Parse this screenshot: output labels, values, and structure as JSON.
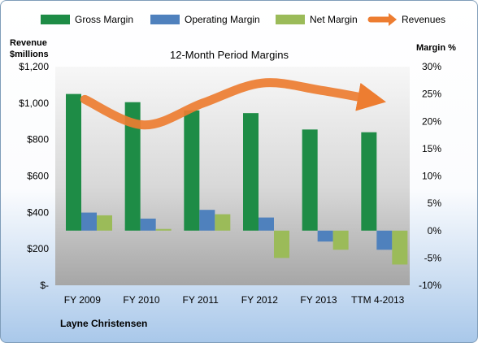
{
  "chart_data": {
    "type": "bar",
    "title": "12-Month Period Margins",
    "ylabel_left_line1": "Revenue",
    "ylabel_left_line2": "$millions",
    "ylabel_right": "Margin %",
    "author": "Layne Christensen",
    "categories": [
      "FY 2009",
      "FY 2010",
      "FY 2011",
      "FY 2012",
      "FY 2013",
      "TTM 4-2013"
    ],
    "left_axis": {
      "min": 0,
      "max": 1200,
      "step": 200,
      "ticks": [
        "$-",
        "$200",
        "$400",
        "$600",
        "$800",
        "$1,000",
        "$1,200"
      ]
    },
    "right_axis": {
      "min": -10,
      "max": 30,
      "step": 5,
      "ticks": [
        "-10%",
        "-5%",
        "0%",
        "5%",
        "10%",
        "15%",
        "20%",
        "25%",
        "30%"
      ]
    },
    "series": [
      {
        "name": "Gross Margin",
        "axis": "right",
        "color": "#1e8c46",
        "values": [
          25.0,
          23.5,
          22.0,
          21.5,
          18.5,
          18.0
        ]
      },
      {
        "name": "Operating Margin",
        "axis": "right",
        "color": "#4f81bd",
        "values": [
          3.3,
          2.2,
          3.8,
          2.4,
          -2.0,
          -3.5
        ]
      },
      {
        "name": "Net Margin",
        "axis": "right",
        "color": "#9bbb59",
        "values": [
          2.8,
          0.3,
          3.0,
          -5.0,
          -3.5,
          -6.2
        ]
      },
      {
        "name": "Revenues",
        "axis": "left",
        "type": "line",
        "color": "#ed7d31",
        "values": [
          1020,
          880,
          1000,
          1110,
          1070,
          1020
        ]
      }
    ],
    "legend_position": "top",
    "grid": false
  }
}
